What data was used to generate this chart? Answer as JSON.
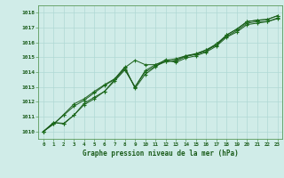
{
  "title": "Graphe pression niveau de la mer (hPa)",
  "bg_color": "#d0ece8",
  "grid_color": "#b0d8d4",
  "line_color": "#1a5c1a",
  "marker_color": "#1a6e1a",
  "xlim": [
    -0.5,
    23.5
  ],
  "ylim": [
    1009.5,
    1018.5
  ],
  "yticks": [
    1010,
    1011,
    1012,
    1013,
    1014,
    1015,
    1016,
    1017,
    1018
  ],
  "xticks": [
    0,
    1,
    2,
    3,
    4,
    5,
    6,
    7,
    8,
    9,
    10,
    11,
    12,
    13,
    14,
    15,
    16,
    17,
    18,
    19,
    20,
    21,
    22,
    23
  ],
  "series": [
    [
      1010.0,
      1010.6,
      1010.5,
      1011.1,
      1011.9,
      1012.3,
      1012.7,
      1013.5,
      1014.3,
      1014.8,
      1014.5,
      1014.5,
      1014.8,
      1014.9,
      1015.1,
      1015.2,
      1015.5,
      1015.8,
      1016.5,
      1016.9,
      1017.4,
      1017.5,
      1017.55,
      1017.8
    ],
    [
      1010.0,
      1010.6,
      1010.55,
      1011.1,
      1011.8,
      1012.2,
      1012.7,
      1013.4,
      1014.15,
      1013.0,
      1014.1,
      1014.5,
      1014.7,
      1014.8,
      1015.1,
      1015.25,
      1015.5,
      1015.9,
      1016.5,
      1016.9,
      1017.4,
      1017.5,
      1017.55,
      1017.8
    ],
    [
      1010.0,
      1010.5,
      1011.1,
      1011.7,
      1012.1,
      1012.6,
      1013.1,
      1013.5,
      1014.2,
      1013.0,
      1014.0,
      1014.4,
      1014.7,
      1014.75,
      1015.05,
      1015.2,
      1015.4,
      1015.9,
      1016.4,
      1016.8,
      1017.3,
      1017.4,
      1017.4,
      1017.65
    ],
    [
      1010.0,
      1010.5,
      1011.15,
      1011.85,
      1012.2,
      1012.7,
      1013.15,
      1013.55,
      1014.35,
      1012.9,
      1013.85,
      1014.35,
      1014.85,
      1014.65,
      1014.95,
      1015.1,
      1015.35,
      1015.75,
      1016.35,
      1016.7,
      1017.2,
      1017.3,
      1017.4,
      1017.6
    ]
  ]
}
